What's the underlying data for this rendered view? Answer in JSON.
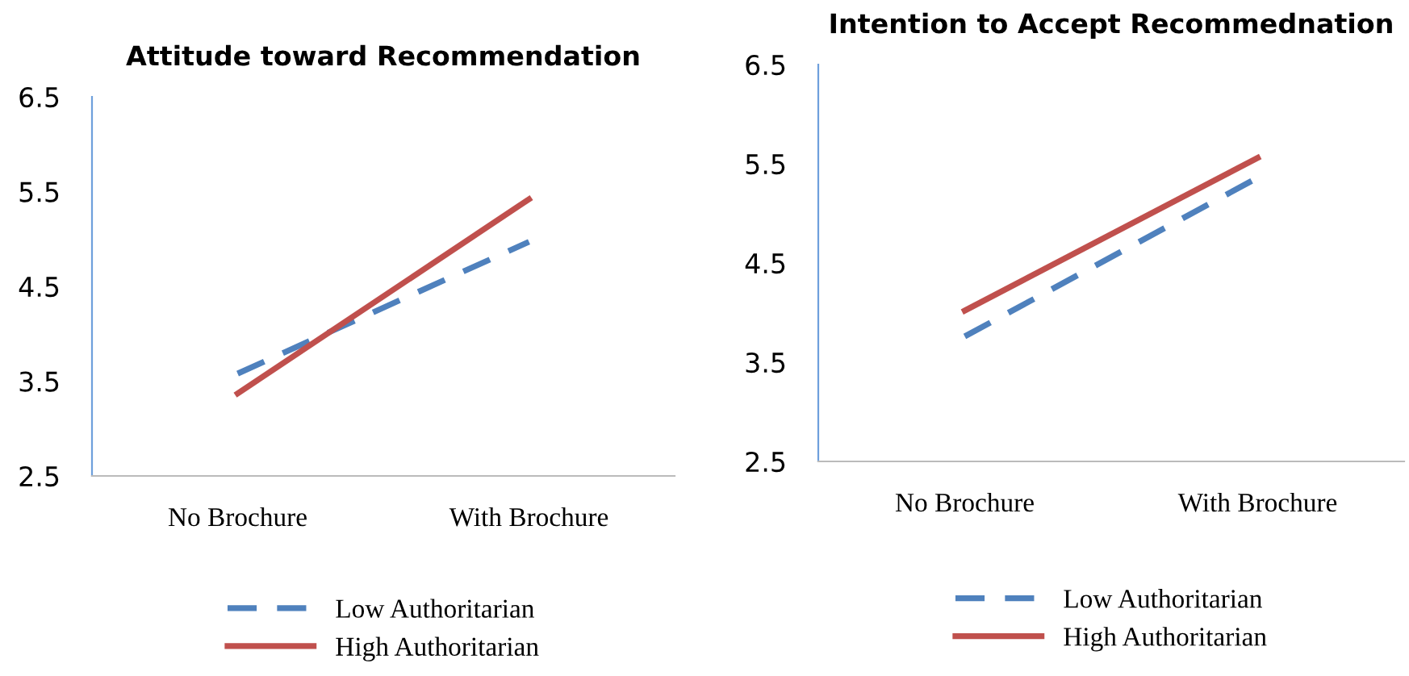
{
  "chart_data": [
    {
      "type": "line",
      "title": "Attitude toward Recommendation",
      "categories": [
        "No Brochure",
        "With Brochure"
      ],
      "series": [
        {
          "name": "Low Authoritarian",
          "color": "#4f81bd",
          "line_style": "dashed",
          "values": [
            3.58,
            4.97
          ]
        },
        {
          "name": "High Authoritarian",
          "color": "#c0504d",
          "line_style": "solid",
          "values": [
            3.37,
            5.42
          ]
        }
      ],
      "ylim": [
        2.5,
        6.5
      ],
      "yticks": [
        2.5,
        3.5,
        4.5,
        5.5,
        6.5
      ],
      "grid": false,
      "legend": "bottom"
    },
    {
      "type": "line",
      "title": "Intention to Accept Recommednation",
      "categories": [
        "No Brochure",
        "With Brochure"
      ],
      "series": [
        {
          "name": "Low Authoritarian",
          "color": "#4f81bd",
          "line_style": "dashed",
          "values": [
            3.76,
            5.36
          ]
        },
        {
          "name": "High Authoritarian",
          "color": "#c0504d",
          "line_style": "solid",
          "values": [
            4.02,
            5.56
          ]
        }
      ],
      "ylim": [
        2.5,
        6.5
      ],
      "yticks": [
        2.5,
        3.5,
        4.5,
        5.5,
        6.5
      ],
      "grid": false,
      "legend": "bottom"
    }
  ]
}
